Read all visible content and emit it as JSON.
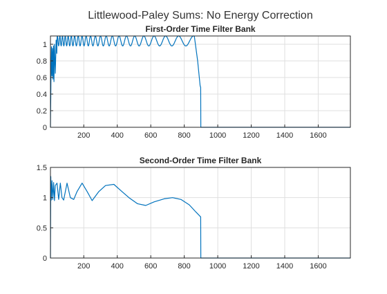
{
  "figure_title": "Littlewood-Paley Sums: No Energy Correction",
  "colors": {
    "line": "#0072bd",
    "grid": "#dfdfdf",
    "axes": "#262626",
    "title": "#333333"
  },
  "chart_data": [
    {
      "type": "line",
      "title": "First-Order Time Filter Bank",
      "xlabel": "",
      "ylabel": "",
      "xlim": [
        1,
        1792
      ],
      "ylim": [
        0,
        1.1
      ],
      "grid": true,
      "x_ticks": [
        200,
        400,
        600,
        800,
        1000,
        1200,
        1400,
        1600
      ],
      "x_tick_labels": [
        "200",
        "400",
        "600",
        "800",
        "1000",
        "1200",
        "1400",
        "1600"
      ],
      "y_ticks": [
        0,
        0.2,
        0.4,
        0.6,
        0.8,
        1
      ],
      "y_tick_labels": [
        "0",
        "0.2",
        "0.4",
        "0.6",
        "0.8",
        "1"
      ],
      "series": [
        {
          "x": [
            1,
            4,
            7,
            10,
            13,
            16,
            19,
            22,
            25,
            30,
            35,
            40,
            50,
            60,
            70,
            80,
            100,
            150,
            200,
            300,
            400,
            500,
            600,
            700,
            760,
            800,
            840,
            860,
            880,
            890,
            895,
            898,
            899,
            905,
            1000,
            1200,
            1400,
            1600,
            1792
          ],
          "y": [
            0.0,
            0.55,
            0.97,
            0.62,
            0.95,
            0.58,
            0.98,
            0.55,
            1.0,
            0.65,
            1.05,
            0.85,
            1.1,
            1.05,
            1.1,
            1.05,
            1.1,
            1.05,
            1.1,
            1.05,
            1.1,
            1.05,
            1.1,
            1.04,
            1.1,
            1.02,
            1.1,
            1.05,
            0.8,
            0.6,
            0.5,
            0.48,
            0.0,
            0.0,
            0.0,
            0.0,
            0.0,
            0.0,
            0.0
          ],
          "oscillation_amplitude": 0.06,
          "oscillation_center": 1.04
        }
      ]
    },
    {
      "type": "line",
      "title": "Second-Order Time Filter Bank",
      "xlabel": "",
      "ylabel": "",
      "xlim": [
        1,
        1792
      ],
      "ylim": [
        0,
        1.5
      ],
      "grid": true,
      "x_ticks": [
        200,
        400,
        600,
        800,
        1000,
        1200,
        1400,
        1600
      ],
      "x_tick_labels": [
        "200",
        "400",
        "600",
        "800",
        "1000",
        "1200",
        "1400",
        "1600"
      ],
      "y_ticks": [
        0,
        0.5,
        1,
        1.5
      ],
      "y_tick_labels": [
        "0",
        "0.5",
        "1",
        "1.5"
      ],
      "series": [
        {
          "x": [
            1,
            3,
            6,
            10,
            15,
            20,
            25,
            30,
            40,
            50,
            60,
            70,
            80,
            100,
            120,
            140,
            160,
            190,
            220,
            250,
            290,
            330,
            380,
            420,
            470,
            520,
            570,
            620,
            680,
            730,
            780,
            830,
            870,
            898,
            899,
            905,
            1000,
            1200,
            1400,
            1600,
            1792
          ],
          "y": [
            0.0,
            1.35,
            0.96,
            1.28,
            0.97,
            1.25,
            0.95,
            1.2,
            1.24,
            0.97,
            1.24,
            1.0,
            0.96,
            1.24,
            1.0,
            0.97,
            1.1,
            1.24,
            1.1,
            0.95,
            1.1,
            1.2,
            1.22,
            1.12,
            1.0,
            0.9,
            0.87,
            0.93,
            0.98,
            1.0,
            0.97,
            0.88,
            0.76,
            0.68,
            0.0,
            0.0,
            0.0,
            0.0,
            0.0,
            0.0,
            0.0
          ]
        }
      ]
    }
  ]
}
